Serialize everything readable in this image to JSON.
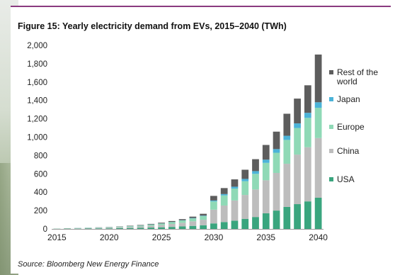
{
  "chart_data": {
    "type": "bar",
    "stacked": true,
    "title": "Figure 15: Yearly electricity demand from EVs, 2015–2040 (TWh)",
    "source": "Source: Bloomberg New Energy Finance",
    "x_tick_labels": [
      "2015",
      "2020",
      "2025",
      "2030",
      "2035",
      "2040"
    ],
    "y_tick_labels": [
      "0",
      "200",
      "400",
      "600",
      "800",
      "1,000",
      "1,200",
      "1,400",
      "1,600",
      "1,800",
      "2,000"
    ],
    "ylim": [
      0,
      2000
    ],
    "grid": false,
    "legend_position": "right",
    "categories": [
      2015,
      2016,
      2017,
      2018,
      2019,
      2020,
      2021,
      2022,
      2023,
      2024,
      2025,
      2026,
      2027,
      2028,
      2029,
      2030,
      2031,
      2032,
      2033,
      2034,
      2035,
      2036,
      2037,
      2038,
      2039,
      2040
    ],
    "series": [
      {
        "name": "USA",
        "color": "#3aa57e",
        "values": [
          2,
          3,
          3,
          4,
          5,
          6,
          8,
          10,
          12,
          15,
          18,
          22,
          27,
          33,
          40,
          60,
          75,
          90,
          110,
          130,
          170,
          200,
          240,
          270,
          300,
          340
        ]
      },
      {
        "name": "China",
        "color": "#bdbdbd",
        "values": [
          1,
          2,
          3,
          4,
          5,
          7,
          9,
          12,
          15,
          20,
          25,
          32,
          40,
          50,
          60,
          150,
          180,
          220,
          260,
          300,
          360,
          410,
          470,
          540,
          590,
          650
        ]
      },
      {
        "name": "Europe",
        "color": "#8fd9b6",
        "values": [
          1,
          2,
          2,
          3,
          4,
          5,
          6,
          8,
          10,
          12,
          15,
          20,
          25,
          32,
          40,
          90,
          110,
          130,
          150,
          170,
          190,
          220,
          260,
          290,
          320,
          330
        ]
      },
      {
        "name": "Japan",
        "color": "#4bb3d8",
        "values": [
          0,
          0,
          1,
          1,
          1,
          1,
          1,
          1,
          1,
          2,
          2,
          2,
          3,
          4,
          5,
          10,
          15,
          20,
          25,
          30,
          35,
          40,
          45,
          50,
          55,
          60
        ]
      },
      {
        "name": "Rest of the world",
        "color": "#5d5d5d",
        "values": [
          0,
          1,
          1,
          1,
          2,
          2,
          3,
          4,
          5,
          6,
          8,
          10,
          12,
          15,
          20,
          50,
          65,
          80,
          100,
          130,
          160,
          190,
          240,
          270,
          300,
          520
        ]
      }
    ]
  }
}
